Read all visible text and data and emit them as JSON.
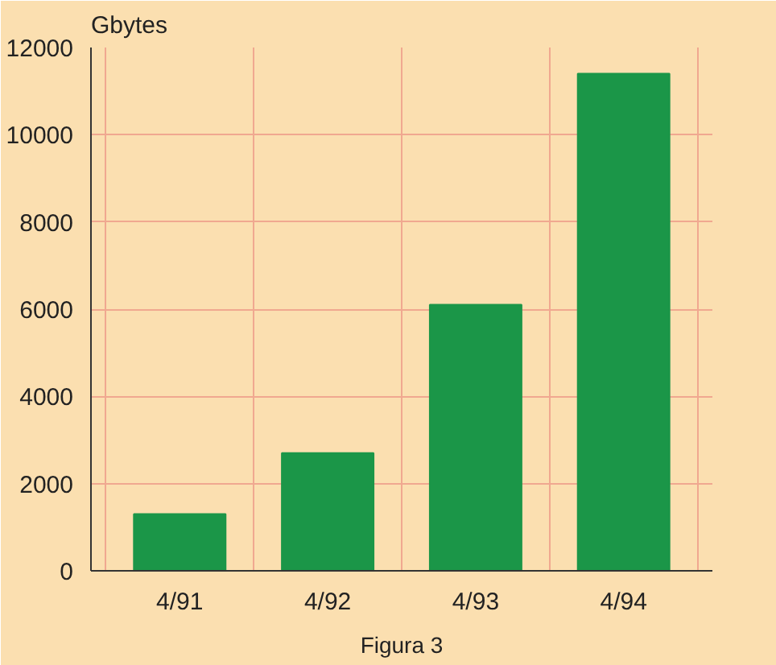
{
  "chart_data": {
    "type": "bar",
    "ylabel": "Gbytes",
    "categories": [
      "4/91",
      "4/92",
      "4/93",
      "4/94"
    ],
    "values": [
      1300,
      2700,
      6100,
      11400
    ],
    "color": "#1b9648",
    "ylim": [
      0,
      12000
    ],
    "yticks": [
      0,
      2000,
      4000,
      6000,
      8000,
      10000,
      12000
    ],
    "grid": true,
    "annotations": [
      "Figura 3"
    ]
  }
}
